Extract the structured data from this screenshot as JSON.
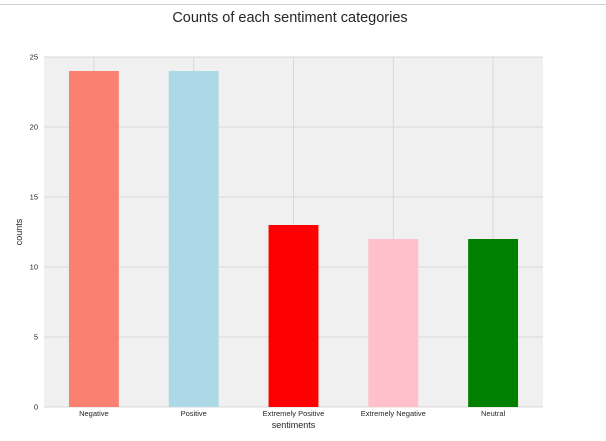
{
  "chart_data": {
    "type": "bar",
    "title": "Counts of each sentiment categories",
    "xlabel": "sentiments",
    "ylabel": "counts",
    "categories": [
      "Negative",
      "Positive",
      "Extremely Positive",
      "Extremely Negative",
      "Neutral"
    ],
    "values": [
      24,
      24,
      13,
      12,
      12
    ],
    "colors": [
      "#fa8072",
      "#add8e6",
      "#ff0000",
      "#ffc0cb",
      "#008000"
    ],
    "ylim": [
      0,
      25
    ],
    "yticks": [
      0,
      5,
      10,
      15,
      20,
      25
    ],
    "grid": true,
    "legend": "none",
    "background": "#f0f0f0"
  }
}
